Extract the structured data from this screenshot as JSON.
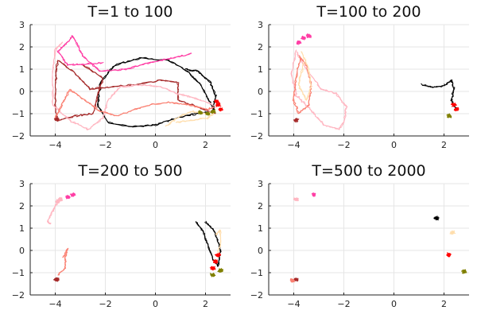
{
  "chart_data": [
    {
      "type": "line",
      "title": "T=1 to 100",
      "xlabel": "",
      "ylabel": "",
      "xlim": [
        -5,
        3
      ],
      "ylim": [
        -2,
        3
      ],
      "xticks": [
        -4,
        -2,
        0,
        2
      ],
      "yticks": [
        -2,
        -1,
        0,
        1,
        2,
        3
      ],
      "grid": true,
      "legend": "none",
      "series": [
        {
          "color": "#000000",
          "style": "trajectory",
          "points": [
            [
              2.3,
              -0.8
            ],
            [
              2.1,
              -0.3
            ],
            [
              1.8,
              0.3
            ],
            [
              1.3,
              0.9
            ],
            [
              0.5,
              1.4
            ],
            [
              -0.6,
              1.5
            ],
            [
              -1.6,
              1.2
            ],
            [
              -2.2,
              0.4
            ],
            [
              -2.3,
              -0.6
            ],
            [
              -1.9,
              -1.4
            ],
            [
              -1.0,
              -1.6
            ],
            [
              0.0,
              -1.5
            ],
            [
              0.8,
              -1.2
            ],
            [
              1.6,
              -1.0
            ],
            [
              2.3,
              -0.9
            ],
            [
              2.4,
              -0.2
            ],
            [
              2.2,
              0.4
            ],
            [
              1.7,
              0.9
            ],
            [
              1.2,
              1.0
            ]
          ]
        },
        {
          "color": "#a52a2a",
          "style": "trajectory",
          "points": [
            [
              2.4,
              -1.0
            ],
            [
              1.7,
              -0.7
            ],
            [
              0.9,
              -0.4
            ],
            [
              0.9,
              0.4
            ],
            [
              0.2,
              0.5
            ],
            [
              -0.8,
              0.3
            ],
            [
              -1.8,
              0.2
            ],
            [
              -2.6,
              0.1
            ],
            [
              -3.3,
              0.9
            ],
            [
              -3.9,
              1.4
            ],
            [
              -4.0,
              0.4
            ],
            [
              -4.0,
              -0.6
            ],
            [
              -3.9,
              -1.3
            ],
            [
              -3.2,
              -1.1
            ],
            [
              -2.5,
              -1.0
            ],
            [
              -2.1,
              0.6
            ],
            [
              -2.9,
              1.2
            ]
          ]
        },
        {
          "color": "#ff3ea5",
          "style": "trajectory",
          "points": [
            [
              1.4,
              1.7
            ],
            [
              0.7,
              1.5
            ],
            [
              -0.2,
              1.3
            ],
            [
              -1.2,
              1.0
            ],
            [
              -2.2,
              0.9
            ],
            [
              -2.9,
              1.6
            ],
            [
              -3.3,
              2.5
            ],
            [
              -3.6,
              2.1
            ],
            [
              -3.9,
              1.8
            ],
            [
              -3.5,
              1.2
            ],
            [
              -2.9,
              1.2
            ],
            [
              -2.1,
              1.3
            ]
          ]
        },
        {
          "color": "#ffb6c1",
          "style": "trajectory",
          "points": [
            [
              2.3,
              -0.6
            ],
            [
              1.6,
              -0.3
            ],
            [
              0.9,
              -0.1
            ],
            [
              0.2,
              0.2
            ],
            [
              -0.6,
              0.3
            ],
            [
              -1.4,
              0.2
            ],
            [
              -1.9,
              -0.4
            ],
            [
              -2.1,
              -1.2
            ],
            [
              -2.7,
              -1.7
            ],
            [
              -3.4,
              -1.3
            ],
            [
              -4.1,
              -0.6
            ],
            [
              -4.1,
              0.9
            ],
            [
              -4.0,
              1.9
            ],
            [
              -3.7,
              2.2
            ]
          ]
        },
        {
          "color": "#fa8072",
          "style": "trajectory",
          "points": [
            [
              -4.0,
              -1.2
            ],
            [
              -3.7,
              -0.5
            ],
            [
              -3.4,
              0.1
            ],
            [
              -2.8,
              -0.4
            ],
            [
              -2.2,
              -0.9
            ],
            [
              -1.5,
              -1.1
            ],
            [
              -0.8,
              -0.8
            ],
            [
              -0.2,
              -0.6
            ],
            [
              0.6,
              -0.5
            ],
            [
              1.3,
              -0.6
            ],
            [
              2.0,
              -0.8
            ],
            [
              2.4,
              -0.7
            ]
          ]
        },
        {
          "color": "#ffdead",
          "style": "trajectory",
          "points": [
            [
              0.4,
              -1.6
            ],
            [
              1.0,
              -1.1
            ],
            [
              1.5,
              -0.9
            ],
            [
              2.0,
              -1.0
            ],
            [
              2.4,
              -0.9
            ],
            [
              2.1,
              -1.2
            ],
            [
              1.4,
              -1.3
            ],
            [
              0.8,
              -1.4
            ]
          ]
        },
        {
          "color": "#808000",
          "style": "cluster",
          "points": [
            [
              2.3,
              -0.9
            ],
            [
              2.1,
              -1.0
            ],
            [
              1.8,
              -0.95
            ]
          ]
        },
        {
          "color": "#ff0000",
          "style": "cluster",
          "points": [
            [
              2.5,
              -0.6
            ],
            [
              2.45,
              -0.45
            ],
            [
              2.6,
              -0.8
            ]
          ]
        },
        {
          "color": "#a52a2a",
          "style": "cluster",
          "points": [
            [
              -3.95,
              -1.25
            ]
          ]
        }
      ]
    },
    {
      "type": "line",
      "title": "T=100 to 200",
      "xlabel": "",
      "ylabel": "",
      "xlim": [
        -5,
        3
      ],
      "ylim": [
        -2,
        3
      ],
      "xticks": [
        -4,
        -2,
        0,
        2
      ],
      "yticks": [
        -2,
        -1,
        0,
        1,
        2,
        3
      ],
      "grid": true,
      "legend": "none",
      "series": [
        {
          "color": "#ffb6c1",
          "style": "trajectory",
          "points": [
            [
              -3.9,
              1.9
            ],
            [
              -4.1,
              0.8
            ],
            [
              -3.9,
              -0.2
            ],
            [
              -3.5,
              -0.6
            ],
            [
              -3.2,
              -1.0
            ],
            [
              -2.8,
              -1.5
            ],
            [
              -2.2,
              -1.7
            ],
            [
              -2.0,
              -1.4
            ],
            [
              -1.9,
              -0.7
            ],
            [
              -2.3,
              -0.1
            ],
            [
              -2.9,
              0.1
            ],
            [
              -3.5,
              1.0
            ],
            [
              -3.9,
              1.8
            ]
          ]
        },
        {
          "color": "#fa8072",
          "style": "trajectory",
          "points": [
            [
              -3.8,
              1.6
            ],
            [
              -3.5,
              1.2
            ],
            [
              -3.3,
              0.3
            ],
            [
              -3.4,
              -0.6
            ],
            [
              -3.8,
              -1.0
            ],
            [
              -4.0,
              -0.4
            ],
            [
              -3.9,
              0.8
            ],
            [
              -3.7,
              1.5
            ]
          ]
        },
        {
          "color": "#ffdead",
          "style": "trajectory",
          "points": [
            [
              -3.7,
              1.8
            ],
            [
              -3.4,
              1.0
            ],
            [
              -3.3,
              0.2
            ],
            [
              -3.5,
              -0.4
            ],
            [
              -3.8,
              0.3
            ],
            [
              -3.6,
              1.3
            ]
          ]
        },
        {
          "color": "#000000",
          "style": "trajectory",
          "points": [
            [
              1.1,
              0.3
            ],
            [
              1.5,
              0.2
            ],
            [
              2.0,
              0.25
            ],
            [
              2.3,
              0.5
            ],
            [
              2.4,
              0.1
            ],
            [
              2.3,
              -0.4
            ],
            [
              2.5,
              -0.8
            ]
          ]
        },
        {
          "color": "#ff3ea5",
          "style": "cluster",
          "points": [
            [
              -3.6,
              2.4
            ],
            [
              -3.4,
              2.5
            ],
            [
              -3.8,
              2.2
            ]
          ]
        },
        {
          "color": "#ff0000",
          "style": "cluster",
          "points": [
            [
              2.5,
              -0.8
            ],
            [
              2.4,
              -0.6
            ]
          ]
        },
        {
          "color": "#808000",
          "style": "cluster",
          "points": [
            [
              2.2,
              -1.1
            ]
          ]
        },
        {
          "color": "#a52a2a",
          "style": "cluster",
          "points": [
            [
              -3.9,
              -1.3
            ]
          ]
        }
      ]
    },
    {
      "type": "line",
      "title": "T=200 to 500",
      "xlabel": "",
      "ylabel": "",
      "xlim": [
        -5,
        3
      ],
      "ylim": [
        -2,
        3
      ],
      "xticks": [
        -4,
        -2,
        0,
        2
      ],
      "yticks": [
        -2,
        -1,
        0,
        1,
        2,
        3
      ],
      "grid": true,
      "legend": "none",
      "series": [
        {
          "color": "#ffb6c1",
          "style": "trajectory",
          "points": [
            [
              -4.2,
              1.2
            ],
            [
              -4.3,
              1.3
            ],
            [
              -4.1,
              1.8
            ],
            [
              -3.9,
              2.2
            ]
          ]
        },
        {
          "color": "#fa8072",
          "style": "trajectory",
          "points": [
            [
              -3.9,
              -1.1
            ],
            [
              -3.6,
              -0.8
            ],
            [
              -3.6,
              -0.3
            ],
            [
              -3.5,
              0.1
            ],
            [
              -3.7,
              -0.3
            ]
          ]
        },
        {
          "color": "#000000",
          "style": "trajectory",
          "points": [
            [
              1.6,
              1.3
            ],
            [
              1.9,
              0.9
            ],
            [
              2.1,
              0.2
            ],
            [
              2.3,
              -0.4
            ],
            [
              2.5,
              -0.7
            ],
            [
              2.6,
              0.0
            ],
            [
              2.4,
              0.8
            ],
            [
              2.0,
              1.3
            ]
          ]
        },
        {
          "color": "#ffdead",
          "style": "trajectory",
          "points": [
            [
              2.4,
              0.7
            ],
            [
              2.6,
              0.9
            ],
            [
              2.6,
              0.3
            ],
            [
              2.5,
              -0.1
            ]
          ]
        },
        {
          "color": "#ff3ea5",
          "style": "cluster",
          "points": [
            [
              -3.3,
              2.5
            ],
            [
              -3.5,
              2.4
            ]
          ]
        },
        {
          "color": "#ffb6c1",
          "style": "cluster",
          "points": [
            [
              -3.8,
              2.3
            ],
            [
              -3.9,
              2.2
            ]
          ]
        },
        {
          "color": "#a52a2a",
          "style": "cluster",
          "points": [
            [
              -3.95,
              -1.3
            ]
          ]
        },
        {
          "color": "#ff0000",
          "style": "cluster",
          "points": [
            [
              2.4,
              -0.5
            ],
            [
              2.5,
              -0.2
            ],
            [
              2.3,
              -0.8
            ]
          ]
        },
        {
          "color": "#808000",
          "style": "cluster",
          "points": [
            [
              2.6,
              -0.9
            ],
            [
              2.3,
              -1.1
            ]
          ]
        }
      ]
    },
    {
      "type": "scatter",
      "title": "T=500 to 2000",
      "xlabel": "",
      "ylabel": "",
      "xlim": [
        -5,
        3
      ],
      "ylim": [
        -2,
        3
      ],
      "xticks": [
        -4,
        -2,
        0,
        2
      ],
      "yticks": [
        -2,
        -1,
        0,
        1,
        2,
        3
      ],
      "grid": true,
      "legend": "none",
      "series": [
        {
          "color": "#ff3ea5",
          "style": "cluster",
          "points": [
            [
              -3.2,
              2.5
            ]
          ]
        },
        {
          "color": "#ffb6c1",
          "style": "cluster",
          "points": [
            [
              -3.9,
              2.3
            ]
          ]
        },
        {
          "color": "#fa8072",
          "style": "cluster",
          "points": [
            [
              -4.05,
              -1.35
            ]
          ]
        },
        {
          "color": "#a52a2a",
          "style": "cluster",
          "points": [
            [
              -3.9,
              -1.3
            ]
          ]
        },
        {
          "color": "#000000",
          "style": "cluster",
          "points": [
            [
              1.7,
              1.45
            ]
          ]
        },
        {
          "color": "#ffdead",
          "style": "cluster",
          "points": [
            [
              2.35,
              0.8
            ]
          ]
        },
        {
          "color": "#ff0000",
          "style": "cluster",
          "points": [
            [
              2.2,
              -0.2
            ]
          ]
        },
        {
          "color": "#808000",
          "style": "cluster",
          "points": [
            [
              2.8,
              -0.95
            ]
          ]
        }
      ]
    }
  ]
}
